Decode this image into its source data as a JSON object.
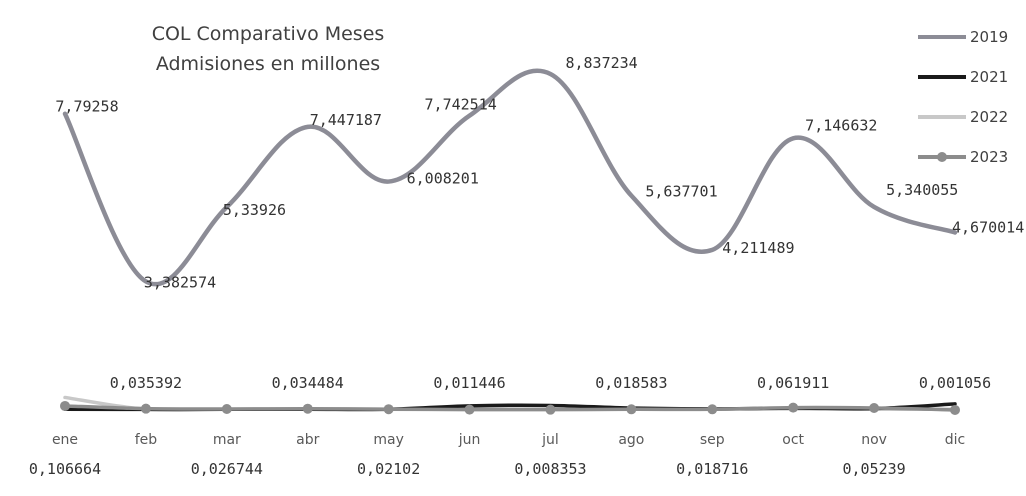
{
  "chart_data": {
    "type": "line",
    "title_line1": "COL Comparativo Meses",
    "title_line2": "Admisiones en millones",
    "categories": [
      "ene",
      "feb",
      "mar",
      "abr",
      "may",
      "jun",
      "jul",
      "ago",
      "sep",
      "oct",
      "nov",
      "dic"
    ],
    "ylim": [
      0,
      9.6
    ],
    "grid": false,
    "legend_position": "right",
    "smooth": true,
    "series": [
      {
        "name": "2019",
        "color": "#8c8c96",
        "marker": false,
        "values": [
          7.79258,
          3.382574,
          5.33926,
          7.447187,
          6.008201,
          7.742514,
          8.837234,
          5.637701,
          4.211489,
          7.146632,
          5.340055,
          4.670014
        ],
        "labels": [
          "7,79258",
          "3,382574",
          "5,33926",
          "7,447187",
          "6,008201",
          "7,742514",
          "8,837234",
          "5,637701",
          "4,211489",
          "7,146632",
          "5,340055",
          "4,670014"
        ]
      },
      {
        "name": "2021",
        "color": "#1a1a1a",
        "marker": false,
        "values": [
          0.02,
          0.015,
          0.02,
          0.02,
          0.02,
          0.11,
          0.12,
          0.05,
          0.03,
          0.05,
          0.04,
          0.16
        ]
      },
      {
        "name": "2022",
        "color": "#c8c8c8",
        "marker": false,
        "values": [
          0.33,
          0.02,
          0.02,
          0.02,
          0.02,
          0.03,
          0.02,
          0.02,
          0.02,
          0.03,
          0.02,
          0.02
        ]
      },
      {
        "name": "2023",
        "color": "#8c8c8c",
        "marker": true,
        "values": [
          0.106664,
          0.035392,
          0.026744,
          0.034484,
          0.02102,
          0.011446,
          0.008353,
          0.018583,
          0.018716,
          0.061911,
          0.05239,
          0.001056
        ],
        "labels": [
          "0,106664",
          "0,035392",
          "0,026744",
          "0,034484",
          "0,02102",
          "0,011446",
          "0,008353",
          "0,018583",
          "0,018716",
          "0,061911",
          "0,05239",
          "0,001056"
        ]
      }
    ]
  }
}
